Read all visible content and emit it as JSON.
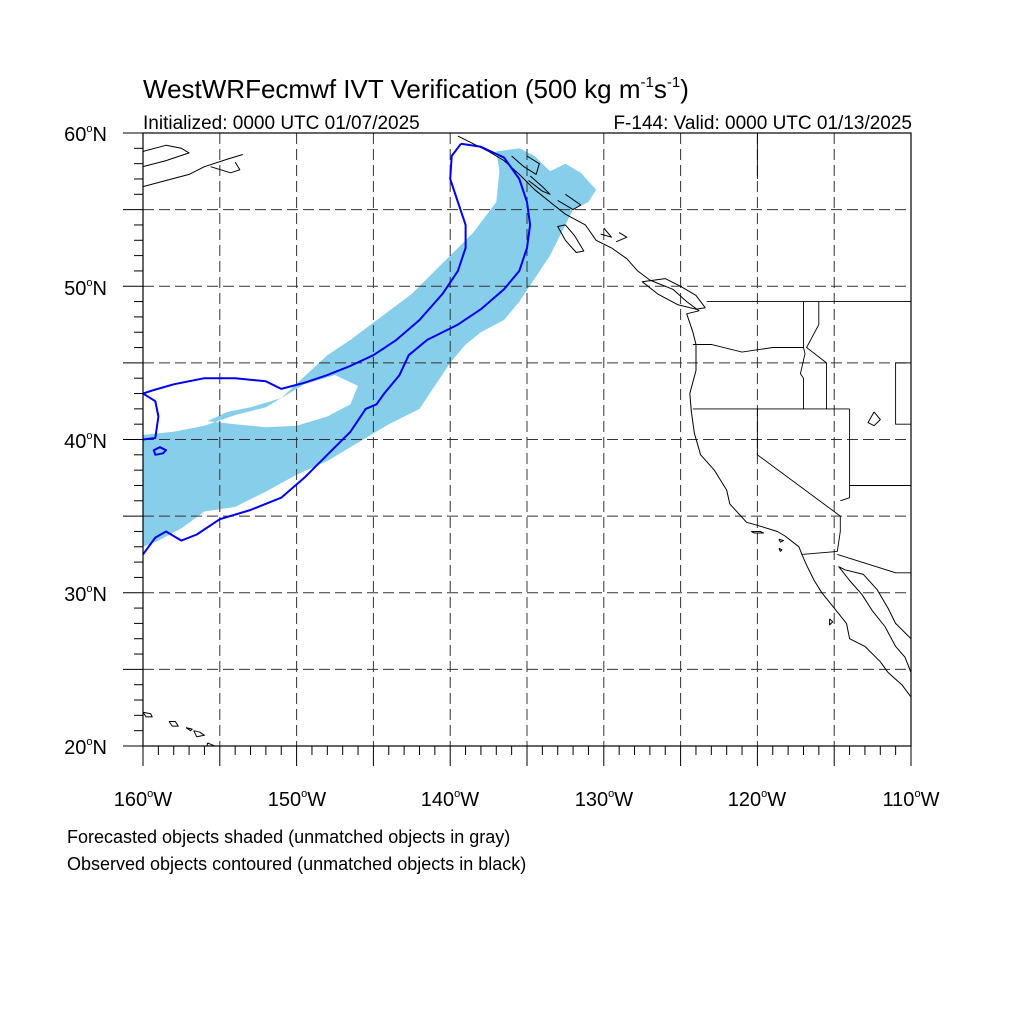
{
  "title": {
    "main": "WestWRFecmwf IVT Verification (500 kg m",
    "sup1": "-1",
    "mid": "s",
    "sup2": "-1",
    "close": ")"
  },
  "subtitle": {
    "initialized": "Initialized: 0000 UTC 01/07/2025",
    "valid": "F-144: Valid: 0000 UTC 01/13/2025"
  },
  "axes": {
    "lat_labels": [
      {
        "text": "60",
        "suffix": "N",
        "lat": 60
      },
      {
        "text": "50",
        "suffix": "N",
        "lat": 50
      },
      {
        "text": "40",
        "suffix": "N",
        "lat": 40
      },
      {
        "text": "30",
        "suffix": "N",
        "lat": 30
      },
      {
        "text": "20",
        "suffix": "N",
        "lat": 20
      }
    ],
    "lon_labels": [
      {
        "text": "160",
        "suffix": "W",
        "lon": -160
      },
      {
        "text": "150",
        "suffix": "W",
        "lon": -150
      },
      {
        "text": "140",
        "suffix": "W",
        "lon": -140
      },
      {
        "text": "130",
        "suffix": "W",
        "lon": -130
      },
      {
        "text": "120",
        "suffix": "W",
        "lon": -120
      },
      {
        "text": "110",
        "suffix": "W",
        "lon": -110
      }
    ],
    "lon_range": [
      -160,
      -110
    ],
    "lat_range": [
      20,
      60
    ],
    "gridlines": "dashed every 5 degrees",
    "projection": "cylindrical equidistant"
  },
  "colors": {
    "forecast_fill": "#87ceeb",
    "observed_contour": "#0000ee",
    "coastline": "#000000",
    "grid": "#333333"
  },
  "map_objects": {
    "forecast_object": {
      "status": "matched",
      "outline": [
        [
          -160,
          33.0
        ],
        [
          -159,
          33.4
        ],
        [
          -157.5,
          34.2
        ],
        [
          -156,
          35.3
        ],
        [
          -154,
          35.6
        ],
        [
          -152,
          36.6
        ],
        [
          -150,
          37.7
        ],
        [
          -148,
          38.6
        ],
        [
          -146,
          39.8
        ],
        [
          -144,
          41.0
        ],
        [
          -142,
          42.0
        ],
        [
          -141,
          43.5
        ],
        [
          -140,
          45.0
        ],
        [
          -139,
          46.2
        ],
        [
          -138,
          47.0
        ],
        [
          -136.5,
          47.8
        ],
        [
          -135.5,
          49.0
        ],
        [
          -134.5,
          50.5
        ],
        [
          -133.5,
          52.0
        ],
        [
          -132.5,
          54.0
        ],
        [
          -132,
          55.0
        ],
        [
          -131,
          55.5
        ],
        [
          -130.5,
          56.3
        ],
        [
          -131.5,
          57.4
        ],
        [
          -132.5,
          58.0
        ],
        [
          -133.5,
          57.5
        ],
        [
          -134.5,
          58.5
        ],
        [
          -135.5,
          59.0
        ],
        [
          -137,
          58.8
        ],
        [
          -136.8,
          57.5
        ],
        [
          -137,
          55.5
        ],
        [
          -138.5,
          53.5
        ],
        [
          -140.5,
          51.5
        ],
        [
          -142.5,
          49.5
        ],
        [
          -144.5,
          48.0
        ],
        [
          -146.5,
          46.5
        ],
        [
          -148,
          45.5
        ],
        [
          -151,
          42.7
        ],
        [
          -152,
          42.1
        ],
        [
          -154,
          41.6
        ],
        [
          -156,
          40.9
        ],
        [
          -158,
          40.5
        ],
        [
          -160,
          40.3
        ]
      ],
      "hole": [
        [
          -155.8,
          41.2
        ],
        [
          -154,
          41.0
        ],
        [
          -152,
          40.8
        ],
        [
          -150,
          40.9
        ],
        [
          -148,
          41.5
        ],
        [
          -146.5,
          42.3
        ],
        [
          -146,
          43.5
        ],
        [
          -147.5,
          44.2
        ],
        [
          -149.5,
          43.6
        ],
        [
          -151,
          42.7
        ],
        [
          -153,
          42.1
        ],
        [
          -154.5,
          41.8
        ]
      ]
    },
    "observed_object": {
      "status": "matched",
      "contour": [
        [
          -139.3,
          59.3
        ],
        [
          -138,
          59.1
        ],
        [
          -136.5,
          58.4
        ],
        [
          -135.5,
          57.0
        ],
        [
          -135.0,
          55.5
        ],
        [
          -134.8,
          54.0
        ],
        [
          -135.0,
          52.5
        ],
        [
          -135.5,
          51.0
        ],
        [
          -136.5,
          49.8
        ],
        [
          -138.0,
          48.5
        ],
        [
          -139.5,
          47.5
        ],
        [
          -141.5,
          46.5
        ],
        [
          -142.7,
          45.5
        ],
        [
          -143.3,
          44.2
        ],
        [
          -144.3,
          43.0
        ],
        [
          -144.8,
          42.3
        ],
        [
          -145.5,
          42.0
        ],
        [
          -146.5,
          40.5
        ],
        [
          -148.0,
          39.0
        ],
        [
          -149.5,
          37.5
        ],
        [
          -151.0,
          36.2
        ],
        [
          -153.0,
          35.4
        ],
        [
          -155.0,
          34.8
        ],
        [
          -156.5,
          33.8
        ],
        [
          -157.5,
          33.4
        ],
        [
          -158.5,
          34.0
        ],
        [
          -159.2,
          33.6
        ],
        [
          -160.0,
          32.5
        ]
      ],
      "contour2": [
        [
          -160.0,
          40.0
        ],
        [
          -159.2,
          40.1
        ],
        [
          -159.0,
          41.5
        ],
        [
          -159.2,
          42.5
        ],
        [
          -160.0,
          43.0
        ],
        [
          -159.4,
          43.2
        ],
        [
          -158.0,
          43.6
        ],
        [
          -156,
          44.0
        ],
        [
          -154,
          44.0
        ],
        [
          -152.0,
          43.8
        ],
        [
          -151.0,
          43.3
        ],
        [
          -149.5,
          43.7
        ],
        [
          -148.0,
          44.2
        ],
        [
          -146.5,
          44.8
        ],
        [
          -145.0,
          45.5
        ],
        [
          -143.5,
          46.5
        ],
        [
          -142.0,
          47.8
        ],
        [
          -140.5,
          49.5
        ],
        [
          -139.5,
          51.0
        ],
        [
          -139.0,
          52.5
        ],
        [
          -139.0,
          54.0
        ],
        [
          -139.5,
          55.5
        ],
        [
          -140.0,
          57.0
        ],
        [
          -139.9,
          58.5
        ],
        [
          -139.3,
          59.3
        ]
      ],
      "small": [
        [
          -159.2,
          39.0
        ],
        [
          -158.7,
          39.1
        ],
        [
          -158.5,
          39.3
        ],
        [
          -158.9,
          39.5
        ],
        [
          -159.3,
          39.3
        ]
      ]
    },
    "coastlines": [
      [
        [
          -160,
          58.8
        ],
        [
          -158.5,
          59.2
        ],
        [
          -157.5,
          59.0
        ],
        [
          -157.0,
          58.7
        ],
        [
          -158.5,
          58.2
        ],
        [
          -160,
          57.8
        ]
      ],
      [
        [
          -160,
          56.5
        ],
        [
          -158.5,
          56.9
        ],
        [
          -157,
          57.3
        ],
        [
          -156,
          57.8
        ],
        [
          -154.5,
          58.3
        ],
        [
          -153.5,
          58.6
        ]
      ],
      [
        [
          -155.6,
          57.8
        ],
        [
          -154.3,
          57.4
        ],
        [
          -153.7,
          57.6
        ],
        [
          -154.0,
          58.1
        ]
      ],
      [
        [
          -160.0,
          22.2
        ],
        [
          -159.5,
          22.1
        ],
        [
          -159.4,
          21.9
        ],
        [
          -159.8,
          21.9
        ],
        [
          -160.0,
          22.2
        ]
      ],
      [
        [
          -158.3,
          21.6
        ],
        [
          -157.9,
          21.6
        ],
        [
          -157.7,
          21.3
        ],
        [
          -158.1,
          21.3
        ],
        [
          -158.3,
          21.6
        ]
      ],
      [
        [
          -157.2,
          21.2
        ],
        [
          -156.8,
          21.1
        ],
        [
          -156.9,
          21.0
        ],
        [
          -157.2,
          21.2
        ]
      ],
      [
        [
          -156.7,
          21.0
        ],
        [
          -156.3,
          20.9
        ],
        [
          -156.0,
          20.7
        ],
        [
          -156.5,
          20.6
        ],
        [
          -156.7,
          21.0
        ]
      ],
      [
        [
          -155.8,
          20.2
        ],
        [
          -155.1,
          19.9
        ],
        [
          -155.0,
          19.6
        ],
        [
          -155.6,
          19.0
        ],
        [
          -155.9,
          19.4
        ],
        [
          -155.8,
          20.2
        ]
      ],
      [
        [
          -139.5,
          59.8
        ],
        [
          -137.5,
          58.8
        ],
        [
          -136.5,
          58.2
        ],
        [
          -135.5,
          57.3
        ],
        [
          -134.5,
          56.3
        ],
        [
          -133.5,
          55.5
        ],
        [
          -132.5,
          54.7
        ],
        [
          -131.2,
          54.0
        ],
        [
          -130.5,
          53.0
        ],
        [
          -129.5,
          52.5
        ],
        [
          -128.5,
          51.8
        ],
        [
          -127.8,
          51.0
        ],
        [
          -127.0,
          50.4
        ],
        [
          -125.5,
          49.8
        ],
        [
          -124.6,
          49.0
        ],
        [
          -123.8,
          48.4
        ],
        [
          -124.6,
          48.2
        ],
        [
          -124.2,
          47.0
        ],
        [
          -124.0,
          46.2
        ],
        [
          -124.0,
          44.5
        ],
        [
          -124.4,
          43.0
        ],
        [
          -124.3,
          41.8
        ],
        [
          -124.1,
          40.4
        ],
        [
          -123.7,
          39.0
        ],
        [
          -122.8,
          38.0
        ],
        [
          -122.5,
          37.5
        ],
        [
          -122.0,
          36.7
        ],
        [
          -121.8,
          35.8
        ],
        [
          -120.7,
          34.6
        ],
        [
          -120.0,
          34.4
        ],
        [
          -118.7,
          34.0
        ],
        [
          -118.2,
          33.7
        ],
        [
          -117.3,
          33.0
        ],
        [
          -117.1,
          32.5
        ],
        [
          -116.8,
          31.8
        ],
        [
          -116.3,
          30.8
        ],
        [
          -115.8,
          30.0
        ],
        [
          -115.0,
          29.0
        ],
        [
          -114.2,
          28.0
        ],
        [
          -114.0,
          27.0
        ],
        [
          -113.0,
          26.5
        ],
        [
          -112.0,
          25.5
        ],
        [
          -111.5,
          24.8
        ],
        [
          -110.6,
          24.0
        ],
        [
          -110.0,
          23.2
        ]
      ],
      [
        [
          -110.0,
          24.8
        ],
        [
          -110.4,
          25.8
        ],
        [
          -111.0,
          26.5
        ],
        [
          -111.7,
          27.8
        ],
        [
          -112.5,
          28.8
        ],
        [
          -113.2,
          29.9
        ],
        [
          -114.0,
          30.8
        ],
        [
          -114.7,
          31.7
        ],
        [
          -114.3,
          31.5
        ],
        [
          -113.1,
          31.2
        ],
        [
          -112.2,
          30.2
        ],
        [
          -111.5,
          29.0
        ],
        [
          -111.0,
          28.0
        ],
        [
          -110.0,
          27.0
        ]
      ],
      [
        [
          -126.0,
          50.5
        ],
        [
          -125.0,
          50.0
        ],
        [
          -124.0,
          49.4
        ],
        [
          -123.4,
          48.6
        ],
        [
          -124.0,
          48.5
        ],
        [
          -125.2,
          48.8
        ],
        [
          -126.5,
          49.5
        ],
        [
          -127.5,
          50.3
        ],
        [
          -126.0,
          50.5
        ]
      ],
      [
        [
          -132.5,
          54.0
        ],
        [
          -131.9,
          53.3
        ],
        [
          -131.3,
          52.3
        ],
        [
          -131.8,
          52.2
        ],
        [
          -132.5,
          53.0
        ],
        [
          -133.0,
          53.9
        ],
        [
          -132.5,
          54.0
        ]
      ],
      [
        [
          -120.4,
          34.0
        ],
        [
          -119.8,
          34.0
        ],
        [
          -119.6,
          33.9
        ],
        [
          -120.2,
          33.9
        ],
        [
          -120.4,
          34.0
        ]
      ],
      [
        [
          -118.6,
          33.5
        ],
        [
          -118.3,
          33.4
        ],
        [
          -118.5,
          33.3
        ],
        [
          -118.6,
          33.5
        ]
      ],
      [
        [
          -118.6,
          32.9
        ],
        [
          -118.4,
          32.8
        ],
        [
          -118.5,
          32.7
        ],
        [
          -118.6,
          32.9
        ]
      ],
      [
        [
          -115.3,
          28.3
        ],
        [
          -115.1,
          28.1
        ],
        [
          -115.3,
          27.9
        ],
        [
          -115.3,
          28.3
        ]
      ],
      [
        [
          -112.4,
          41.8
        ],
        [
          -112.0,
          41.3
        ],
        [
          -112.4,
          40.9
        ],
        [
          -112.8,
          41.1
        ],
        [
          -112.4,
          41.8
        ]
      ],
      [
        [
          -136.0,
          58.5
        ],
        [
          -135.2,
          57.8
        ],
        [
          -134.4,
          57.3
        ],
        [
          -134.2,
          58.0
        ],
        [
          -135.0,
          58.5
        ]
      ],
      [
        [
          -134.8,
          57.2
        ],
        [
          -134.0,
          56.5
        ],
        [
          -133.5,
          56.0
        ],
        [
          -134.0,
          56.2
        ],
        [
          -134.9,
          56.9
        ]
      ],
      [
        [
          -133.0,
          55.6
        ],
        [
          -132.0,
          55.0
        ],
        [
          -131.5,
          55.3
        ],
        [
          -132.5,
          56.0
        ]
      ],
      [
        [
          -129.0,
          53.5
        ],
        [
          -128.5,
          53.2
        ],
        [
          -129.2,
          52.9
        ]
      ],
      [
        [
          -130.0,
          53.8
        ],
        [
          -129.5,
          53.2
        ],
        [
          -130.2,
          53.4
        ]
      ]
    ],
    "borders": [
      [
        [
          -123.3,
          49.0
        ],
        [
          -110.0,
          49.0
        ]
      ],
      [
        [
          -117.0,
          49.0
        ],
        [
          -117.0,
          46.0
        ],
        [
          -116.9,
          45.6
        ],
        [
          -117.2,
          44.3
        ],
        [
          -117.0,
          44.0
        ],
        [
          -117.0,
          42.0
        ]
      ],
      [
        [
          -124.2,
          46.2
        ],
        [
          -123.0,
          46.2
        ],
        [
          -121.0,
          45.7
        ],
        [
          -119.0,
          46.0
        ],
        [
          -117.0,
          46.0
        ]
      ],
      [
        [
          -124.2,
          42.0
        ],
        [
          -117.0,
          42.0
        ],
        [
          -114.0,
          42.0
        ]
      ],
      [
        [
          -120.0,
          42.0
        ],
        [
          -120.0,
          39.0
        ],
        [
          -114.6,
          35.0
        ],
        [
          -114.6,
          34.0
        ],
        [
          -114.8,
          32.7
        ]
      ],
      [
        [
          -115.5,
          42.0
        ],
        [
          -115.5,
          45.0
        ],
        [
          -116.8,
          46.0
        ],
        [
          -116.0,
          47.5
        ],
        [
          -116.0,
          49.0
        ]
      ],
      [
        [
          -114.0,
          42.0
        ],
        [
          -114.0,
          37.0
        ],
        [
          -110.0,
          37.0
        ]
      ],
      [
        [
          -114.0,
          37.0
        ],
        [
          -114.0,
          36.2
        ],
        [
          -114.6,
          36.0
        ]
      ],
      [
        [
          -114.8,
          32.7
        ],
        [
          -117.1,
          32.5
        ]
      ],
      [
        [
          -114.8,
          32.5
        ],
        [
          -111.0,
          31.3
        ],
        [
          -110.0,
          31.3
        ]
      ],
      [
        [
          -111.0,
          45.0
        ],
        [
          -110.0,
          45.0
        ]
      ],
      [
        [
          -111.0,
          45.0
        ],
        [
          -111.0,
          41.0
        ],
        [
          -110.0,
          41.0
        ]
      ],
      [
        [
          -120.0,
          57.0
        ],
        [
          -120.0,
          60.0
        ]
      ]
    ]
  },
  "footnotes": [
    "Forecasted objects shaded (unmatched objects in gray)",
    "Observed objects contoured (unmatched objects in black)"
  ]
}
